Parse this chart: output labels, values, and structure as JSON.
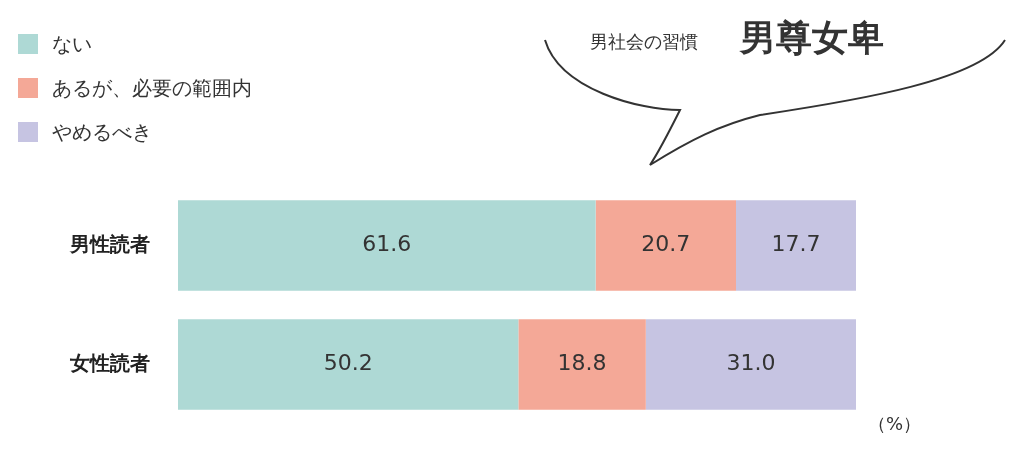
{
  "chart_data": {
    "type": "bar",
    "orientation": "horizontal",
    "stacked": true,
    "subtitle": "男社会の習慣",
    "title": "男尊女卑",
    "categories": [
      "男性読者",
      "女性読者"
    ],
    "series": [
      {
        "name": "ない",
        "color": "#aed9d5",
        "values": [
          61.6,
          50.2
        ],
        "value_labels": [
          "61.6",
          "50.2"
        ]
      },
      {
        "name": "あるが、必要の範囲内",
        "color": "#f4a897",
        "values": [
          20.7,
          18.8
        ],
        "value_labels": [
          "20.7",
          "18.8"
        ]
      },
      {
        "name": "やめるべき",
        "color": "#c6c4e2",
        "values": [
          17.7,
          31.0
        ],
        "value_labels": [
          "17.7",
          "31.0"
        ]
      }
    ],
    "legend": "top left",
    "annotations": [
      "（%）"
    ]
  }
}
